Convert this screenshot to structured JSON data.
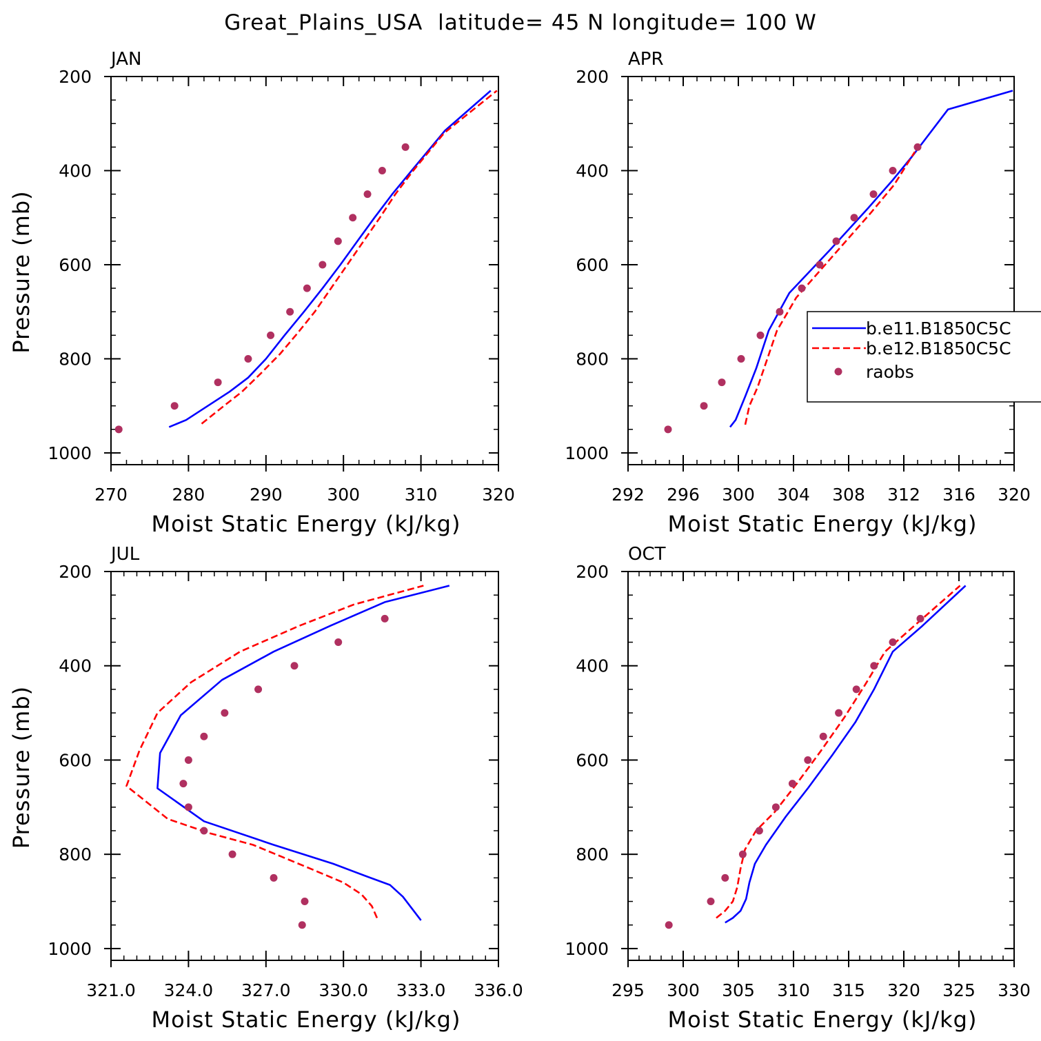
{
  "title": "Great_Plains_USA  latitude= 45 N longitude= 100 W",
  "colors": {
    "model1": "#0000ff",
    "model2": "#ff0000",
    "obs": "#b03060"
  },
  "legend": {
    "placement": "right of APR panel",
    "entries": [
      {
        "label": "b.e11.B1850C5C",
        "style": "solid",
        "color": "#0000ff"
      },
      {
        "label": "b.e12.B1850C5C",
        "style": "dashed",
        "color": "#ff0000"
      },
      {
        "label": "raobs",
        "style": "marker",
        "color": "#b03060"
      }
    ]
  },
  "chart_data": [
    {
      "type": "line",
      "panel": "JAN",
      "title": "JAN",
      "xlabel": "Moist Static Energy (kJ/kg)",
      "ylabel": "Pressure (mb)",
      "xlim": [
        270,
        320
      ],
      "ylim": [
        1025,
        200
      ],
      "y_inverted": true,
      "xticks": [
        270,
        280,
        290,
        300,
        310,
        320
      ],
      "xtick_labels": [
        "270",
        "280",
        "290",
        "300",
        "310",
        "320"
      ],
      "x_minor_step": 2,
      "yticks": [
        200,
        400,
        600,
        800,
        1000
      ],
      "ytick_labels": [
        "200",
        "400",
        "600",
        "800",
        "1000"
      ],
      "y_minor_step": 50,
      "series": [
        {
          "name": "b.e11.B1850C5C",
          "style": "solid",
          "x": [
            277.5,
            279.7,
            282.5,
            285.3,
            287.7,
            290.0,
            292.4,
            294.9,
            297.3,
            299.6,
            301.8,
            304.0,
            306.3,
            308.8,
            313.1,
            319.0
          ],
          "y": [
            945,
            930,
            900,
            870,
            840,
            800,
            750,
            700,
            650,
            600,
            550,
            500,
            450,
            400,
            315,
            230
          ]
        },
        {
          "name": "b.e12.B1850C5C",
          "style": "dashed",
          "x": [
            281.7,
            284.2,
            286.9,
            289.4,
            291.8,
            294.1,
            296.3,
            298.4,
            300.5,
            302.6,
            304.7,
            306.7,
            309.0,
            313.0,
            319.8
          ],
          "y": [
            938,
            905,
            870,
            830,
            790,
            745,
            700,
            650,
            600,
            550,
            500,
            450,
            400,
            320,
            230
          ]
        },
        {
          "name": "raobs",
          "style": "marker",
          "x": [
            271.0,
            278.2,
            283.8,
            287.7,
            290.6,
            293.1,
            295.3,
            297.3,
            299.3,
            301.2,
            303.1,
            305.0,
            308.0
          ],
          "y": [
            950,
            900,
            850,
            800,
            750,
            700,
            650,
            600,
            550,
            500,
            450,
            400,
            350
          ]
        }
      ]
    },
    {
      "type": "line",
      "panel": "APR",
      "title": "APR",
      "xlabel": "Moist Static Energy (kJ/kg)",
      "ylabel": "",
      "xlim": [
        292,
        320
      ],
      "ylim": [
        1025,
        200
      ],
      "y_inverted": true,
      "xticks": [
        292,
        296,
        300,
        304,
        308,
        312,
        316,
        320
      ],
      "xtick_labels": [
        "292",
        "296",
        "300",
        "304",
        "308",
        "312",
        "316",
        "320"
      ],
      "x_minor_step": 1,
      "yticks": [
        200,
        400,
        600,
        800,
        1000
      ],
      "ytick_labels": [
        "200",
        "400",
        "600",
        "800",
        "1000"
      ],
      "y_minor_step": 50,
      "series": [
        {
          "name": "b.e11.B1850C5C",
          "style": "solid",
          "x": [
            299.4,
            299.8,
            300.5,
            301.3,
            302.2,
            303.7,
            306.6,
            309.4,
            311.2,
            312.6,
            315.2,
            319.9
          ],
          "y": [
            945,
            930,
            880,
            820,
            740,
            660,
            570,
            480,
            420,
            370,
            270,
            230
          ]
        },
        {
          "name": "b.e12.B1850C5C",
          "style": "dashed",
          "x": [
            300.5,
            300.8,
            301.4,
            302.1,
            302.8,
            304.2,
            306.9,
            309.6,
            311.3,
            312.8
          ],
          "y": [
            940,
            900,
            860,
            800,
            740,
            670,
            580,
            490,
            430,
            360
          ]
        },
        {
          "name": "raobs",
          "style": "marker",
          "x": [
            294.9,
            297.5,
            298.8,
            300.2,
            301.6,
            303.0,
            304.6,
            305.9,
            307.1,
            308.4,
            309.8,
            311.2,
            313.0
          ],
          "y": [
            950,
            900,
            850,
            800,
            750,
            700,
            650,
            600,
            550,
            500,
            450,
            400,
            350
          ]
        }
      ]
    },
    {
      "type": "line",
      "panel": "JUL",
      "title": "JUL",
      "xlabel": "Moist Static Energy (kJ/kg)",
      "ylabel": "Pressure (mb)",
      "xlim": [
        321,
        336
      ],
      "ylim": [
        1025,
        200
      ],
      "y_inverted": true,
      "xticks": [
        321,
        324,
        327,
        330,
        333,
        336
      ],
      "xtick_labels": [
        "321.0",
        "324.0",
        "327.0",
        "330.0",
        "333.0",
        "336.0"
      ],
      "x_minor_step": 0.5,
      "yticks": [
        200,
        400,
        600,
        800,
        1000
      ],
      "ytick_labels": [
        "200",
        "400",
        "600",
        "800",
        "1000"
      ],
      "y_minor_step": 50,
      "series": [
        {
          "name": "b.e11.B1850C5C",
          "style": "solid",
          "x": [
            333.0,
            332.3,
            331.8,
            330.8,
            329.6,
            327.3,
            324.6,
            322.8,
            322.9,
            323.7,
            325.3,
            327.3,
            329.5,
            331.6,
            334.1
          ],
          "y": [
            940,
            890,
            865,
            845,
            820,
            780,
            730,
            660,
            585,
            505,
            430,
            370,
            315,
            265,
            230
          ]
        },
        {
          "name": "b.e12.B1850C5C",
          "style": "dashed",
          "x": [
            331.3,
            331.1,
            330.7,
            330.0,
            328.7,
            327.6,
            326.5,
            324.8,
            323.2,
            321.6,
            322.1,
            322.8,
            324.1,
            326.0,
            328.3,
            330.4,
            333.1
          ],
          "y": [
            935,
            910,
            885,
            860,
            830,
            805,
            780,
            755,
            725,
            655,
            580,
            500,
            435,
            370,
            315,
            270,
            230
          ]
        },
        {
          "name": "raobs",
          "style": "marker",
          "x": [
            328.4,
            328.5,
            327.3,
            325.7,
            324.6,
            324.0,
            323.8,
            324.0,
            324.6,
            325.4,
            326.7,
            328.1,
            329.8,
            331.6
          ],
          "y": [
            950,
            900,
            850,
            800,
            750,
            700,
            650,
            600,
            550,
            500,
            450,
            400,
            350,
            300
          ]
        }
      ]
    },
    {
      "type": "line",
      "panel": "OCT",
      "title": "OCT",
      "xlabel": "Moist Static Energy (kJ/kg)",
      "ylabel": "",
      "xlim": [
        295,
        330
      ],
      "ylim": [
        1025,
        200
      ],
      "y_inverted": true,
      "xticks": [
        295,
        300,
        305,
        310,
        315,
        320,
        325,
        330
      ],
      "xtick_labels": [
        "295",
        "300",
        "305",
        "310",
        "315",
        "320",
        "325",
        "330"
      ],
      "x_minor_step": 1,
      "yticks": [
        200,
        400,
        600,
        800,
        1000
      ],
      "ytick_labels": [
        "200",
        "400",
        "600",
        "800",
        "1000"
      ],
      "y_minor_step": 50,
      "series": [
        {
          "name": "b.e11.B1850C5C",
          "style": "solid",
          "x": [
            303.8,
            304.5,
            305.2,
            305.7,
            306.0,
            306.5,
            307.5,
            309.3,
            311.3,
            313.5,
            315.6,
            317.3,
            319.0,
            321.7,
            325.6
          ],
          "y": [
            945,
            935,
            920,
            895,
            860,
            820,
            780,
            720,
            660,
            590,
            520,
            450,
            370,
            315,
            230
          ]
        },
        {
          "name": "b.e12.B1850C5C",
          "style": "dashed",
          "x": [
            303.0,
            303.8,
            304.5,
            304.9,
            305.2,
            305.6,
            306.6,
            308.3,
            310.3,
            312.5,
            314.6,
            316.5,
            318.3,
            321.2,
            325.1
          ],
          "y": [
            935,
            920,
            900,
            870,
            830,
            790,
            750,
            710,
            650,
            580,
            510,
            440,
            370,
            310,
            230
          ]
        },
        {
          "name": "raobs",
          "style": "marker",
          "x": [
            298.7,
            302.5,
            303.8,
            305.4,
            306.9,
            308.4,
            309.9,
            311.3,
            312.7,
            314.1,
            315.7,
            317.3,
            319.0,
            321.5
          ],
          "y": [
            950,
            900,
            850,
            800,
            750,
            700,
            650,
            600,
            550,
            500,
            450,
            400,
            350,
            300
          ]
        }
      ]
    }
  ]
}
